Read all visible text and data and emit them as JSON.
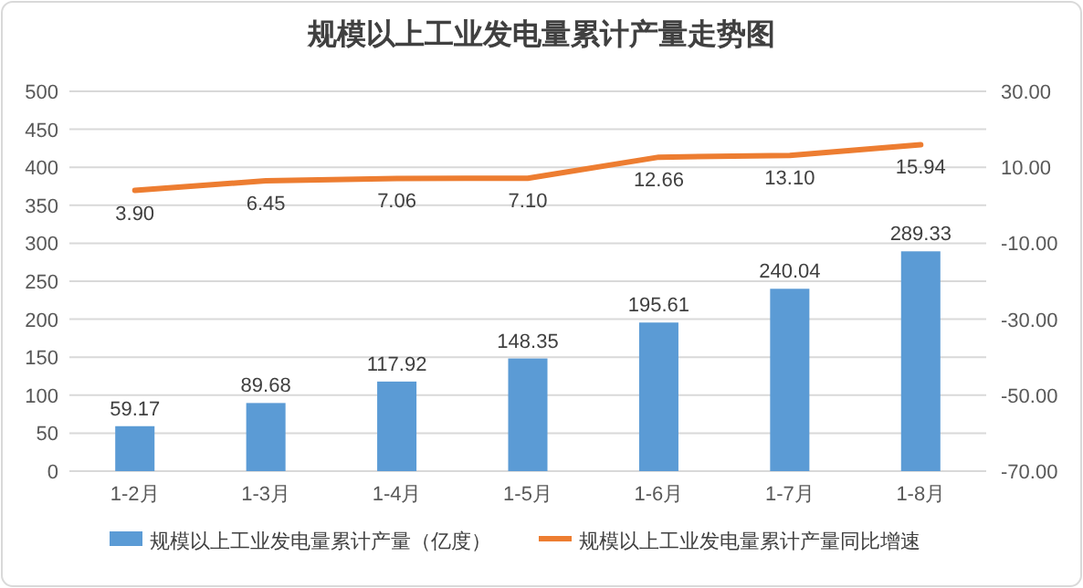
{
  "chart_data": {
    "type": "bar",
    "title": "规模以上工业发电量累计产量走势图",
    "categories": [
      "1-2月",
      "1-3月",
      "1-4月",
      "1-5月",
      "1-6月",
      "1-7月",
      "1-8月"
    ],
    "series": [
      {
        "name": "规模以上工业发电量累计产量（亿度）",
        "color": "#5b9bd5",
        "values": [
          59.17,
          89.68,
          117.92,
          148.35,
          195.61,
          240.04,
          289.33
        ],
        "value_labels": [
          "59.17",
          "89.68",
          "117.92",
          "148.35",
          "195.61",
          "240.04",
          "289.33"
        ]
      },
      {
        "name": "规模以上工业发电量累计产量同比增速",
        "type": "line",
        "axis": "y2",
        "color": "#ed7d31",
        "values": [
          3.9,
          6.45,
          7.06,
          7.1,
          12.66,
          13.1,
          15.94
        ],
        "value_labels": [
          "3.90",
          "6.45",
          "7.06",
          "7.10",
          "12.66",
          "13.10",
          "15.94"
        ]
      }
    ],
    "ylim": [
      0,
      500
    ],
    "yticks": [
      0,
      50,
      100,
      150,
      200,
      250,
      300,
      350,
      400,
      450,
      500
    ],
    "y2lim": [
      -70,
      30
    ],
    "y2ticks": [
      {
        "value": -70,
        "label": "-70.00"
      },
      {
        "value": -50,
        "label": "-50.00"
      },
      {
        "value": -30,
        "label": "-30.00"
      },
      {
        "value": -10,
        "label": "-10.00"
      },
      {
        "value": 10,
        "label": "10.00"
      },
      {
        "value": 30,
        "label": "30.00"
      }
    ],
    "grid": "y",
    "legend": "bottom",
    "marker": "none",
    "line_style": "solid"
  }
}
